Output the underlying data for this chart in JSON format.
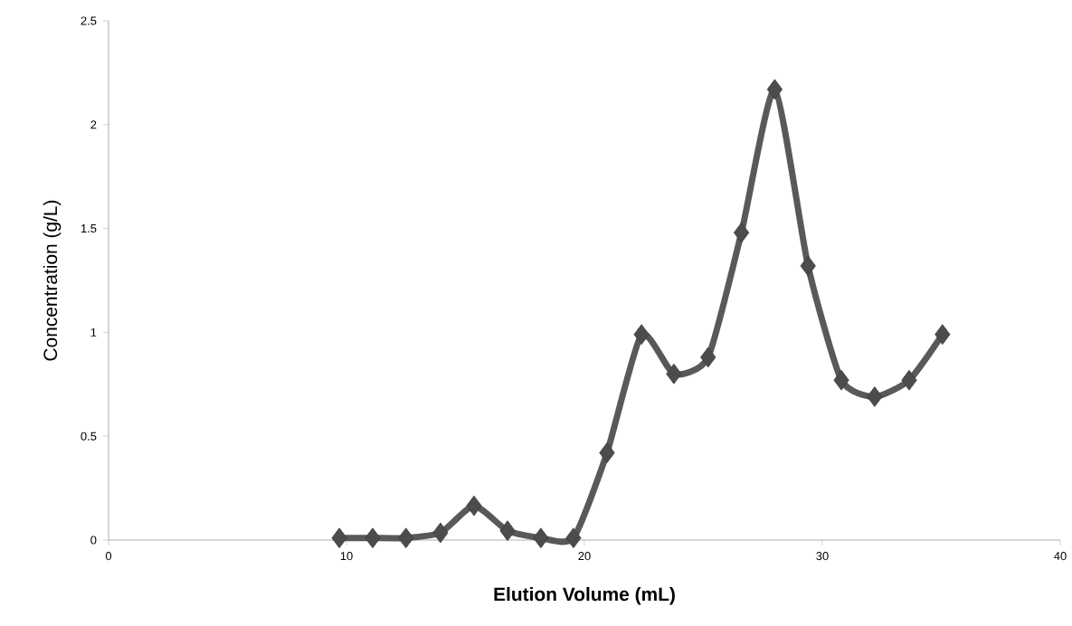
{
  "chart_data": {
    "type": "line",
    "xlabel": "Elution Volume (mL)",
    "ylabel": "Concentration  (g/L)",
    "xlim": [
      0,
      40
    ],
    "xticks": [
      0,
      10,
      20,
      30,
      40
    ],
    "ylim": [
      0,
      2.5
    ],
    "yticks": [
      0,
      0.5,
      1,
      1.5,
      2,
      2.5
    ],
    "grid": false,
    "marker": "diamond",
    "line_style": "solid",
    "series": [
      {
        "color": "#595959",
        "x": [
          9.7,
          11.1,
          12.5,
          13.95,
          15.36,
          16.77,
          18.17,
          19.54,
          20.95,
          22.4,
          23.76,
          25.2,
          26.6,
          28.0,
          29.4,
          30.8,
          32.2,
          33.65,
          35.05
        ],
        "values": [
          0.01,
          0.01,
          0.01,
          0.035,
          0.165,
          0.045,
          0.01,
          0.01,
          0.42,
          0.99,
          0.8,
          0.88,
          1.48,
          2.17,
          1.32,
          0.77,
          0.69,
          0.77,
          0.99
        ]
      }
    ]
  }
}
